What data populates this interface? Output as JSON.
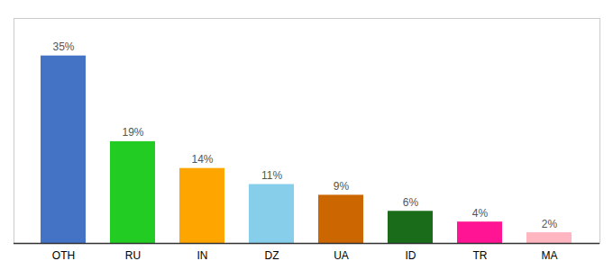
{
  "chart_data": {
    "type": "bar",
    "categories": [
      "OTH",
      "RU",
      "IN",
      "DZ",
      "UA",
      "ID",
      "TR",
      "MA"
    ],
    "values": [
      35,
      19,
      14,
      11,
      9,
      6,
      4,
      2
    ],
    "value_labels": [
      "35%",
      "19%",
      "14%",
      "11%",
      "9%",
      "6%",
      "4%",
      "2%"
    ],
    "colors": [
      "#4472C4",
      "#22CC22",
      "#FFA500",
      "#87CEEB",
      "#CC6600",
      "#1A6B1A",
      "#FF1493",
      "#FFB6C1"
    ],
    "ylim": [
      0,
      42
    ],
    "data_labels": true,
    "tick_labels": "x",
    "grid": false
  }
}
